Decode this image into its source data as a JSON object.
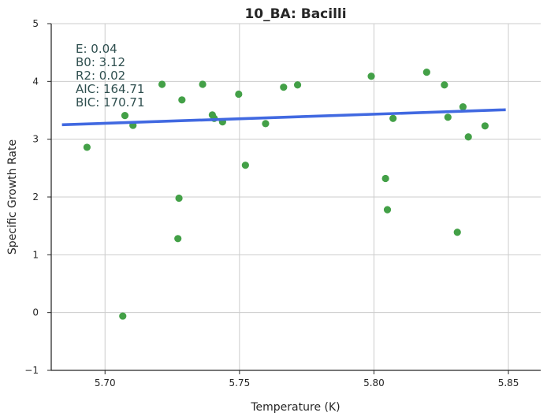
{
  "chart_data": {
    "type": "scatter",
    "title": "10_BA: Bacilli",
    "xlabel": "Temperature (K)",
    "ylabel": "Specific Growth Rate",
    "xlim": [
      5.68,
      5.862
    ],
    "ylim": [
      -1,
      5
    ],
    "x_ticks": [
      5.7,
      5.75,
      5.8,
      5.85
    ],
    "x_tick_labels": [
      "5.70",
      "5.75",
      "5.80",
      "5.85"
    ],
    "y_ticks": [
      -1,
      0,
      1,
      2,
      3,
      4,
      5
    ],
    "y_tick_labels": [
      "−1",
      "0",
      "1",
      "2",
      "3",
      "4",
      "5"
    ],
    "grid": true,
    "point_color": "#43a047",
    "line_color": "#4169e1",
    "text_color": "#2f4f4f",
    "stats": [
      {
        "label": "E:",
        "value": "0.04"
      },
      {
        "label": "B0:",
        "value": "3.12"
      },
      {
        "label": "R2:",
        "value": "0.02"
      },
      {
        "label": "AIC:",
        "value": "164.71"
      },
      {
        "label": "BIC:",
        "value": "170.71"
      }
    ],
    "fit_line": {
      "x": [
        5.684,
        5.849
      ],
      "y": [
        3.25,
        3.51
      ]
    },
    "points": [
      {
        "x": 5.6933,
        "y": 2.86
      },
      {
        "x": 5.7066,
        "y": -0.06
      },
      {
        "x": 5.7074,
        "y": 3.41
      },
      {
        "x": 5.7104,
        "y": 3.24
      },
      {
        "x": 5.7212,
        "y": 3.95
      },
      {
        "x": 5.7271,
        "y": 1.28
      },
      {
        "x": 5.7275,
        "y": 1.98
      },
      {
        "x": 5.7286,
        "y": 3.68
      },
      {
        "x": 5.7363,
        "y": 3.95
      },
      {
        "x": 5.7399,
        "y": 3.42
      },
      {
        "x": 5.7406,
        "y": 3.36
      },
      {
        "x": 5.7437,
        "y": 3.3
      },
      {
        "x": 5.7497,
        "y": 3.78
      },
      {
        "x": 5.7522,
        "y": 2.55
      },
      {
        "x": 5.7597,
        "y": 3.27
      },
      {
        "x": 5.7664,
        "y": 3.9
      },
      {
        "x": 5.7716,
        "y": 3.94
      },
      {
        "x": 5.799,
        "y": 4.09
      },
      {
        "x": 5.8043,
        "y": 2.32
      },
      {
        "x": 5.805,
        "y": 1.78
      },
      {
        "x": 5.8071,
        "y": 3.36
      },
      {
        "x": 5.8196,
        "y": 4.16
      },
      {
        "x": 5.8262,
        "y": 3.94
      },
      {
        "x": 5.8275,
        "y": 3.38
      },
      {
        "x": 5.831,
        "y": 1.39
      },
      {
        "x": 5.8331,
        "y": 3.56
      },
      {
        "x": 5.8351,
        "y": 3.04
      },
      {
        "x": 5.8413,
        "y": 3.23
      }
    ]
  }
}
